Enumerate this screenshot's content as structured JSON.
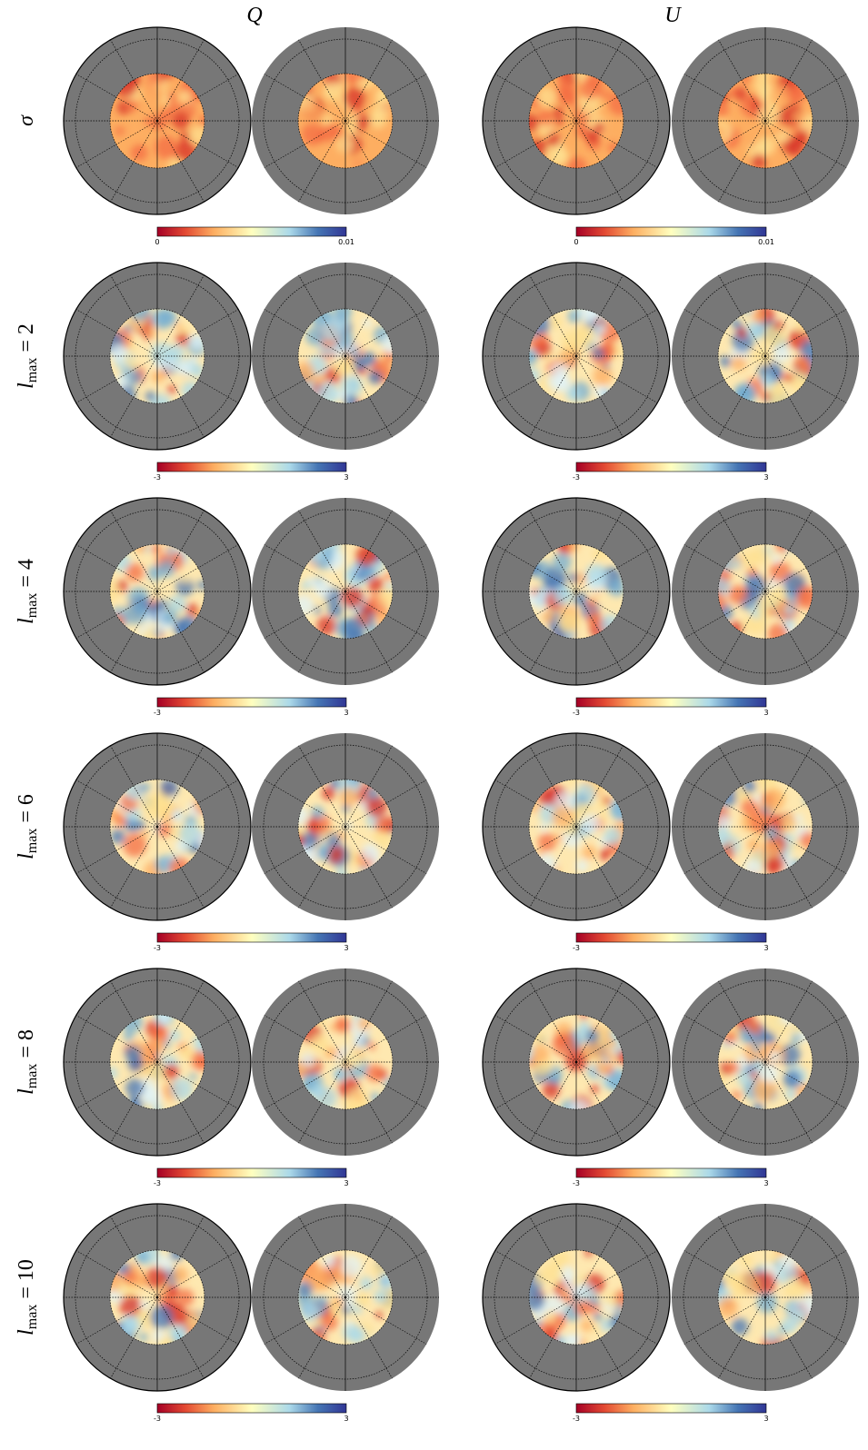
{
  "columns": [
    "Q",
    "U"
  ],
  "rows": [
    {
      "label": {
        "text": "σ"
      },
      "colorbars": [
        {
          "min": "0",
          "max": "0.01"
        },
        {
          "min": "0",
          "max": "0.01"
        }
      ]
    },
    {
      "label": {
        "symbol": "l",
        "subscript": "max",
        "rest": " = 2"
      },
      "colorbars": [
        {
          "min": "-3",
          "max": "3"
        },
        {
          "min": "-3",
          "max": "3"
        }
      ]
    },
    {
      "label": {
        "symbol": "l",
        "subscript": "max",
        "rest": " = 4"
      },
      "colorbars": [
        {
          "min": "-3",
          "max": "3"
        },
        {
          "min": "-3",
          "max": "3"
        }
      ]
    },
    {
      "label": {
        "symbol": "l",
        "subscript": "max",
        "rest": " = 6"
      },
      "colorbars": [
        {
          "min": "-3",
          "max": "3"
        },
        {
          "min": "-3",
          "max": "3"
        }
      ]
    },
    {
      "label": {
        "symbol": "l",
        "subscript": "max",
        "rest": " = 8"
      },
      "colorbars": [
        {
          "min": "-3",
          "max": "3"
        },
        {
          "min": "-3",
          "max": "3"
        }
      ]
    },
    {
      "label": {
        "symbol": "l",
        "subscript": "max",
        "rest": " = 10"
      },
      "colorbars": [
        {
          "min": "-3",
          "max": "3"
        },
        {
          "min": "-3",
          "max": "3"
        }
      ]
    }
  ]
}
